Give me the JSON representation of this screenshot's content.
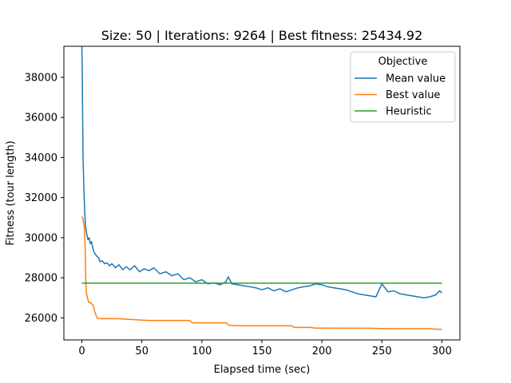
{
  "chart_data": {
    "type": "line",
    "title": "Size: 50 | Iterations: 9264 | Best fitness: 25434.92",
    "xlabel": "Elapsed time (sec)",
    "ylabel": "Fitness (tour length)",
    "xlim": [
      -15,
      315
    ],
    "ylim": [
      24900,
      39550
    ],
    "x_ticks": [
      0,
      50,
      100,
      150,
      200,
      250,
      300
    ],
    "y_ticks": [
      26000,
      28000,
      30000,
      32000,
      34000,
      36000,
      38000
    ],
    "grid": false,
    "legend": {
      "title": "Objective",
      "placement": "top-right"
    },
    "series": [
      {
        "name": "Mean value",
        "color": "#1f77b4",
        "x": [
          0,
          0.3,
          0.6,
          1,
          1.5,
          2,
          2.5,
          3,
          4,
          5,
          6,
          7,
          8,
          9,
          10,
          11,
          12,
          13,
          14,
          15,
          17,
          19,
          21,
          23,
          25,
          28,
          31,
          34,
          37,
          40,
          44,
          48,
          52,
          56,
          60,
          65,
          70,
          75,
          80,
          85,
          90,
          95,
          100,
          105,
          110,
          115,
          120,
          122,
          125,
          130,
          135,
          140,
          145,
          150,
          155,
          160,
          165,
          170,
          175,
          180,
          185,
          190,
          195,
          200,
          205,
          210,
          215,
          220,
          225,
          230,
          235,
          240,
          245,
          250,
          255,
          260,
          265,
          270,
          275,
          280,
          285,
          290,
          295,
          298,
          300
        ],
        "y": [
          39550,
          38500,
          36500,
          34000,
          32800,
          31800,
          31100,
          30600,
          30200,
          29900,
          30000,
          29700,
          29800,
          29500,
          29300,
          29200,
          29100,
          29050,
          29000,
          28800,
          28850,
          28700,
          28750,
          28600,
          28700,
          28500,
          28650,
          28400,
          28550,
          28400,
          28600,
          28300,
          28450,
          28350,
          28500,
          28200,
          28300,
          28100,
          28200,
          27900,
          28000,
          27800,
          27900,
          27700,
          27750,
          27650,
          27800,
          28050,
          27700,
          27650,
          27600,
          27550,
          27500,
          27400,
          27500,
          27350,
          27450,
          27300,
          27400,
          27500,
          27550,
          27600,
          27700,
          27650,
          27550,
          27500,
          27450,
          27400,
          27300,
          27200,
          27150,
          27100,
          27050,
          27700,
          27300,
          27350,
          27200,
          27150,
          27100,
          27050,
          27000,
          27050,
          27150,
          27350,
          27250
        ]
      },
      {
        "name": "Best value",
        "color": "#ff7f0e",
        "x": [
          0,
          1,
          2,
          2.8,
          3.2,
          3.7,
          4.2,
          5,
          6,
          7,
          8,
          9,
          10,
          11,
          12,
          13,
          14,
          15,
          30,
          55,
          80,
          90,
          92,
          100,
          120,
          123,
          135,
          150,
          175,
          177,
          190,
          195,
          200,
          240,
          250,
          260,
          280,
          290,
          295,
          300
        ],
        "y": [
          31050,
          30950,
          30500,
          29300,
          27900,
          27300,
          27100,
          26900,
          26750,
          26780,
          26700,
          26650,
          26500,
          26250,
          26100,
          25980,
          25980,
          25960,
          25960,
          25870,
          25870,
          25870,
          25750,
          25750,
          25750,
          25620,
          25600,
          25600,
          25600,
          25520,
          25520,
          25490,
          25490,
          25480,
          25470,
          25460,
          25460,
          25460,
          25435,
          25435
        ]
      },
      {
        "name": "Heuristic",
        "color": "#2ca02c",
        "x": [
          0,
          300
        ],
        "y": [
          27730,
          27730
        ]
      }
    ]
  }
}
